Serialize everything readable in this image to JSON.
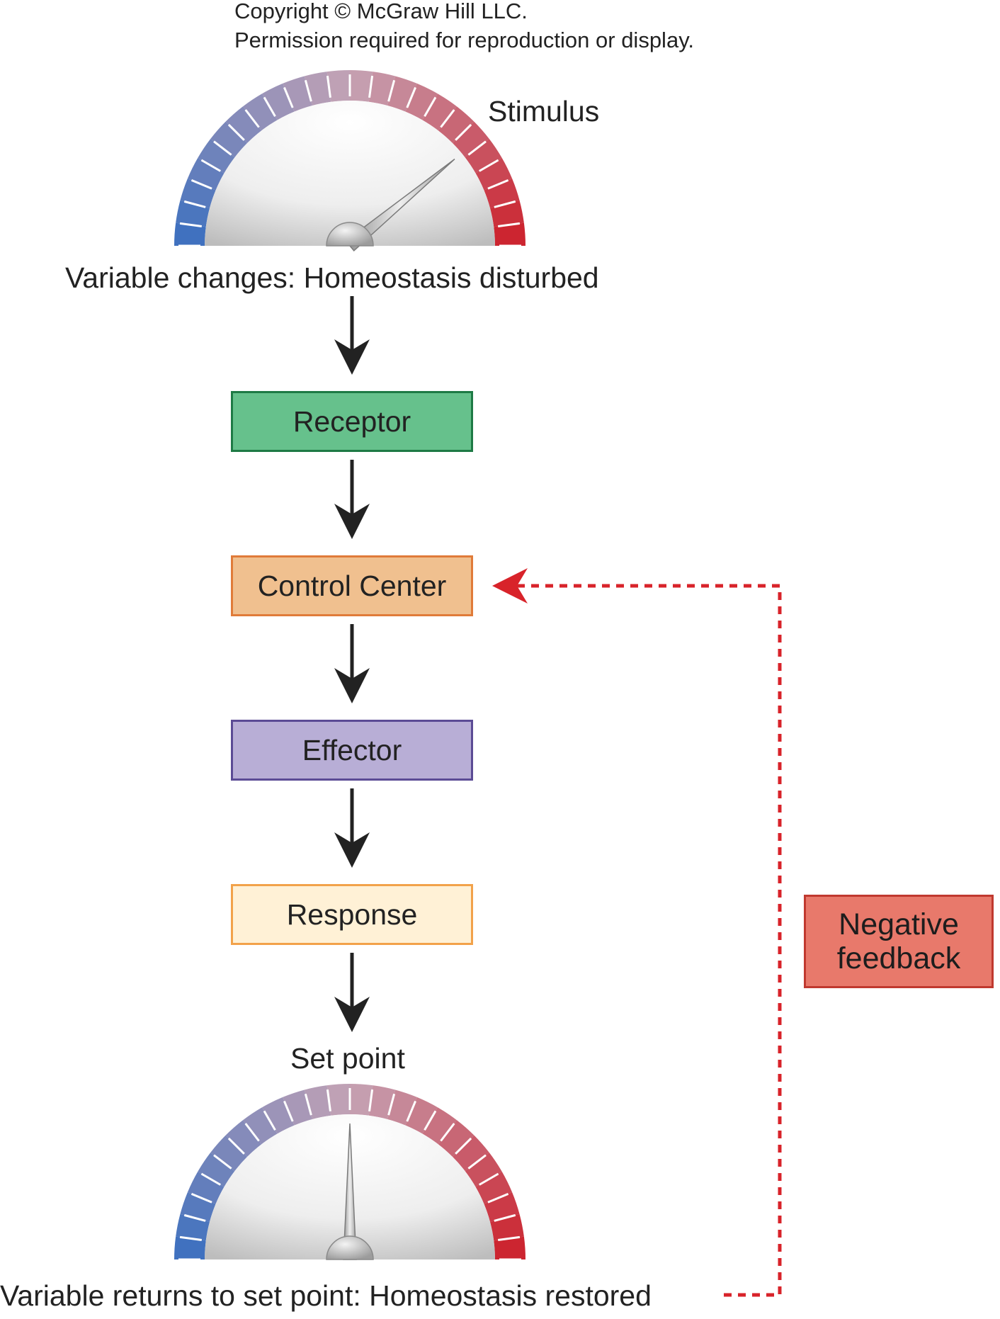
{
  "copyright": {
    "line1": "Copyright © McGraw Hill LLC.",
    "line2": "Permission required for reproduction or display."
  },
  "top_gauge": {
    "label": "Stimulus",
    "needle_position": 0.78,
    "description_label": "Variable changes: Homeostasis disturbed"
  },
  "steps": [
    {
      "label": "Receptor",
      "fill": "#66c18c",
      "border": "#1e7a45"
    },
    {
      "label": "Control Center",
      "fill": "#f0c08f",
      "border": "#e07b39"
    },
    {
      "label": "Effector",
      "fill": "#b8aed6",
      "border": "#5b4b95"
    },
    {
      "label": "Response",
      "fill": "#fff1d6",
      "border": "#f2a24a"
    }
  ],
  "bottom_gauge": {
    "label": "Set point",
    "needle_position": 0.5,
    "description_label": "Variable returns to set point: Homeostasis restored"
  },
  "feedback": {
    "label": "Negative feedback",
    "fill": "#e8796b",
    "line_color": "#d8232a"
  },
  "colors": {
    "arrow": "#222222",
    "gauge_cold": "#3a6fbf",
    "gauge_mid": "#c5a3b5",
    "gauge_hot": "#cc1f2a"
  }
}
